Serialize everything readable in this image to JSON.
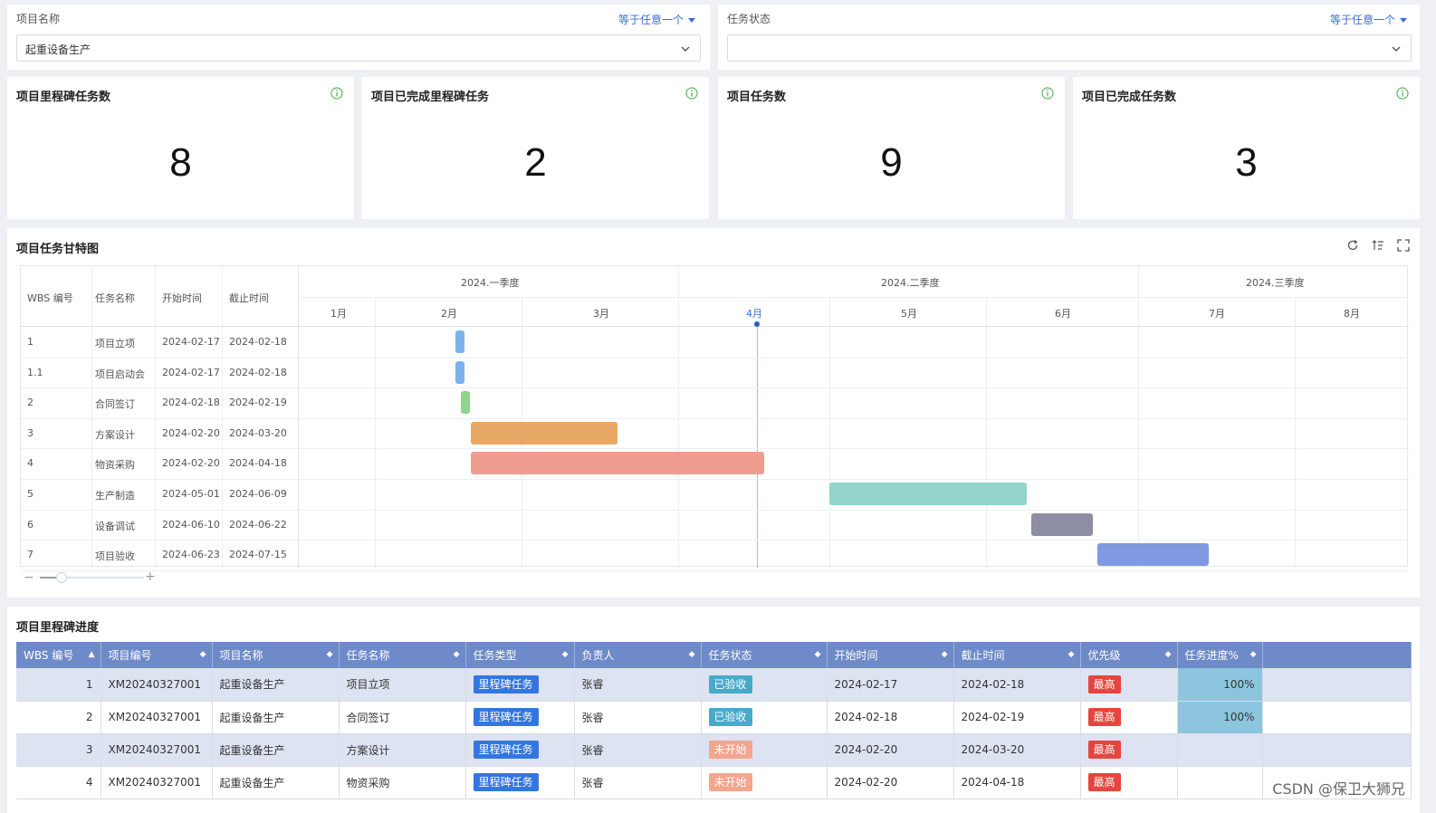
{
  "filters": [
    {
      "label": "项目名称",
      "mode": "等于任意一个",
      "value": "起重设备生产"
    },
    {
      "label": "任务状态",
      "mode": "等于任意一个",
      "value": ""
    }
  ],
  "kpis": [
    {
      "title": "项目里程碑任务数",
      "value": "8"
    },
    {
      "title": "项目已完成里程碑任务",
      "value": "2"
    },
    {
      "title": "项目任务数",
      "value": "9"
    },
    {
      "title": "项目已完成任务数",
      "value": "3"
    }
  ],
  "gantt": {
    "title": "项目任务甘特图",
    "columns": [
      "WBS 编号",
      "任务名称",
      "开始时间",
      "截止时间"
    ],
    "quarters": [
      "2024.一季度",
      "2024.二季度",
      "2024.三季度"
    ],
    "months": [
      "1月",
      "2月",
      "3月",
      "4月",
      "5月",
      "6月",
      "7月",
      "8月"
    ],
    "current_month": "4月",
    "rows": [
      {
        "wbs": "1",
        "name": "项目立项",
        "start": "2024-02-17",
        "end": "2024-02-18",
        "color": "#7cb2ec"
      },
      {
        "wbs": "1.1",
        "name": "项目启动会",
        "start": "2024-02-17",
        "end": "2024-02-18",
        "color": "#7cb2ec"
      },
      {
        "wbs": "2",
        "name": "合同签订",
        "start": "2024-02-18",
        "end": "2024-02-19",
        "color": "#8fd58d"
      },
      {
        "wbs": "3",
        "name": "方案设计",
        "start": "2024-02-20",
        "end": "2024-03-20",
        "color": "#e9a966"
      },
      {
        "wbs": "4",
        "name": "物资采购",
        "start": "2024-02-20",
        "end": "2024-04-18",
        "color": "#ee9d8e"
      },
      {
        "wbs": "5",
        "name": "生产制造",
        "start": "2024-05-01",
        "end": "2024-06-09",
        "color": "#93d5cb"
      },
      {
        "wbs": "6",
        "name": "设备调试",
        "start": "2024-06-10",
        "end": "2024-06-22",
        "color": "#8d8da3"
      },
      {
        "wbs": "7",
        "name": "项目验收",
        "start": "2024-06-23",
        "end": "2024-07-15",
        "color": "#7f9ae0"
      }
    ]
  },
  "milestones": {
    "title": "项目里程碑进度",
    "columns": [
      "WBS 编号",
      "项目编号",
      "项目名称",
      "任务名称",
      "任务类型",
      "负责人",
      "任务状态",
      "开始时间",
      "截止时间",
      "优先级",
      "任务进度%"
    ],
    "rows": [
      {
        "wbs": "1",
        "project_no": "XM20240327001",
        "project_name": "起重设备生产",
        "task": "项目立项",
        "type": "里程碑任务",
        "owner": "张睿",
        "status": "已验收",
        "start": "2024-02-17",
        "end": "2024-02-18",
        "priority": "最高",
        "progress": "100%"
      },
      {
        "wbs": "2",
        "project_no": "XM20240327001",
        "project_name": "起重设备生产",
        "task": "合同签订",
        "type": "里程碑任务",
        "owner": "张睿",
        "status": "已验收",
        "start": "2024-02-18",
        "end": "2024-02-19",
        "priority": "最高",
        "progress": "100%"
      },
      {
        "wbs": "3",
        "project_no": "XM20240327001",
        "project_name": "起重设备生产",
        "task": "方案设计",
        "type": "里程碑任务",
        "owner": "张睿",
        "status": "未开始",
        "start": "2024-02-20",
        "end": "2024-03-20",
        "priority": "最高",
        "progress": ""
      },
      {
        "wbs": "4",
        "project_no": "XM20240327001",
        "project_name": "起重设备生产",
        "task": "物资采购",
        "type": "里程碑任务",
        "owner": "张睿",
        "status": "未开始",
        "start": "2024-02-20",
        "end": "2024-04-18",
        "priority": "最高",
        "progress": ""
      }
    ]
  },
  "watermark": "CSDN @保卫大狮兄"
}
